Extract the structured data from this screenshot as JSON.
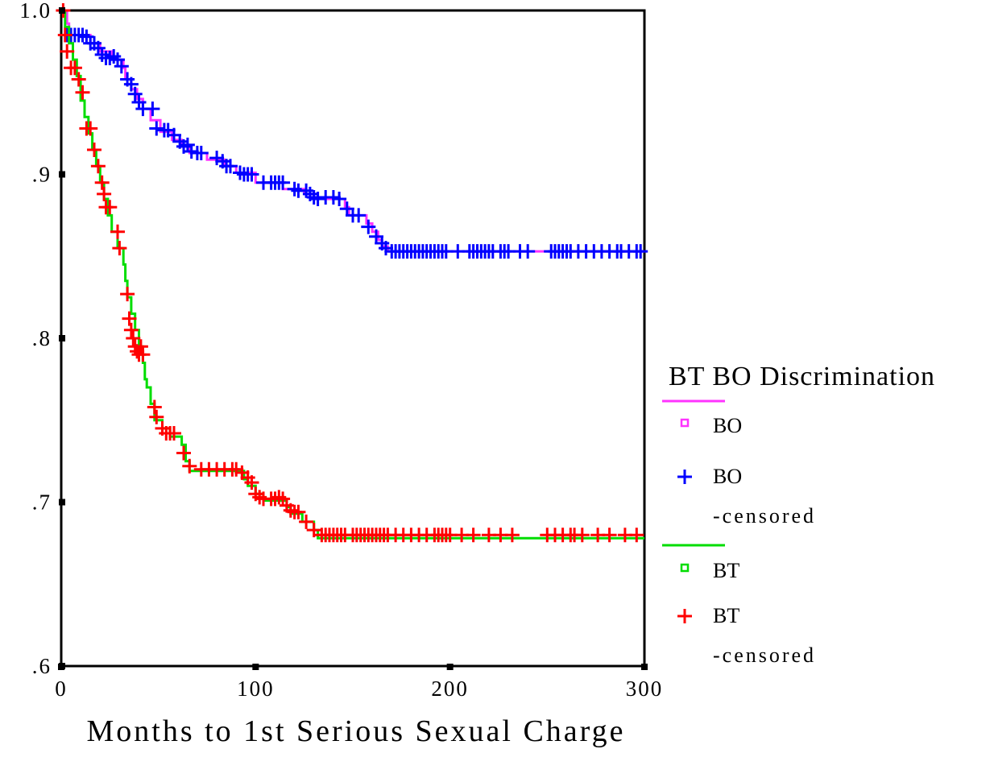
{
  "chart_data": {
    "type": "line",
    "subtype": "kaplan-meier-survival",
    "title": "",
    "xlabel": "Months to 1st Serious Sexual Charge",
    "ylabel": "",
    "xlim": [
      0,
      300
    ],
    "ylim": [
      0.6,
      1.0
    ],
    "x_ticks": [
      0,
      100,
      200,
      300
    ],
    "x_tick_labels": [
      "0",
      "100",
      "200",
      "300"
    ],
    "y_ticks": [
      1.0,
      0.9,
      0.8,
      0.7,
      0.6
    ],
    "y_tick_labels": [
      "1.0",
      ".9",
      ".8",
      ".7",
      ".6"
    ],
    "grid": false,
    "legend": {
      "title": "BT BO Discrimination",
      "position": "right",
      "entries": [
        {
          "kind": "line",
          "label": "",
          "color": "#ff33ff"
        },
        {
          "kind": "square",
          "label": "BO",
          "color": "#ff33ff"
        },
        {
          "kind": "plus",
          "label": "BO",
          "sublabel": "-censored",
          "color": "#0000ff"
        },
        {
          "kind": "line",
          "label": "",
          "color": "#00dd00"
        },
        {
          "kind": "square",
          "label": "BT",
          "color": "#00dd00"
        },
        {
          "kind": "plus",
          "label": "BT",
          "sublabel": "-censored",
          "color": "#ff0000"
        }
      ]
    },
    "series": [
      {
        "name": "BO",
        "line_color": "#ff33ff",
        "censor_color": "#0000ff",
        "steps": [
          [
            0,
            1.0
          ],
          [
            3,
            0.992
          ],
          [
            4,
            0.985
          ],
          [
            15,
            0.98
          ],
          [
            20,
            0.975
          ],
          [
            26,
            0.97
          ],
          [
            32,
            0.965
          ],
          [
            33,
            0.958
          ],
          [
            36,
            0.952
          ],
          [
            39,
            0.946
          ],
          [
            42,
            0.94
          ],
          [
            46,
            0.933
          ],
          [
            51,
            0.926
          ],
          [
            57,
            0.921
          ],
          [
            62,
            0.917
          ],
          [
            66,
            0.913
          ],
          [
            75,
            0.909
          ],
          [
            84,
            0.905
          ],
          [
            90,
            0.901
          ],
          [
            100,
            0.895
          ],
          [
            114,
            0.891
          ],
          [
            125,
            0.888
          ],
          [
            130,
            0.885
          ],
          [
            146,
            0.88
          ],
          [
            148,
            0.875
          ],
          [
            157,
            0.87
          ],
          [
            160,
            0.865
          ],
          [
            163,
            0.86
          ],
          [
            165,
            0.856
          ],
          [
            168,
            0.853
          ],
          [
            300,
            0.853
          ]
        ],
        "censored": [
          [
            3,
            0.985
          ],
          [
            5,
            0.985
          ],
          [
            7,
            0.985
          ],
          [
            9,
            0.985
          ],
          [
            11,
            0.985
          ],
          [
            13,
            0.984
          ],
          [
            15,
            0.98
          ],
          [
            17,
            0.98
          ],
          [
            19,
            0.977
          ],
          [
            21,
            0.973
          ],
          [
            23,
            0.971
          ],
          [
            25,
            0.971
          ],
          [
            27,
            0.972
          ],
          [
            29,
            0.97
          ],
          [
            31,
            0.966
          ],
          [
            34,
            0.958
          ],
          [
            36,
            0.955
          ],
          [
            38,
            0.949
          ],
          [
            40,
            0.944
          ],
          [
            42,
            0.94
          ],
          [
            47,
            0.94
          ],
          [
            49,
            0.928
          ],
          [
            53,
            0.927
          ],
          [
            55,
            0.927
          ],
          [
            58,
            0.924
          ],
          [
            61,
            0.92
          ],
          [
            63,
            0.917
          ],
          [
            65,
            0.918
          ],
          [
            67,
            0.914
          ],
          [
            70,
            0.913
          ],
          [
            72,
            0.913
          ],
          [
            80,
            0.91
          ],
          [
            83,
            0.908
          ],
          [
            85,
            0.905
          ],
          [
            87,
            0.905
          ],
          [
            92,
            0.901
          ],
          [
            94,
            0.9
          ],
          [
            96,
            0.9
          ],
          [
            98,
            0.9
          ],
          [
            104,
            0.895
          ],
          [
            108,
            0.895
          ],
          [
            110,
            0.895
          ],
          [
            112,
            0.895
          ],
          [
            114,
            0.895
          ],
          [
            120,
            0.891
          ],
          [
            122,
            0.89
          ],
          [
            126,
            0.89
          ],
          [
            128,
            0.888
          ],
          [
            130,
            0.886
          ],
          [
            132,
            0.885
          ],
          [
            136,
            0.886
          ],
          [
            140,
            0.886
          ],
          [
            143,
            0.885
          ],
          [
            147,
            0.879
          ],
          [
            150,
            0.875
          ],
          [
            153,
            0.875
          ],
          [
            158,
            0.868
          ],
          [
            162,
            0.862
          ],
          [
            165,
            0.858
          ],
          [
            167,
            0.855
          ],
          [
            170,
            0.853
          ],
          [
            172,
            0.853
          ],
          [
            174,
            0.853
          ],
          [
            176,
            0.853
          ],
          [
            178,
            0.853
          ],
          [
            180,
            0.853
          ],
          [
            182,
            0.853
          ],
          [
            184,
            0.853
          ],
          [
            186,
            0.853
          ],
          [
            188,
            0.853
          ],
          [
            190,
            0.853
          ],
          [
            192,
            0.853
          ],
          [
            194,
            0.853
          ],
          [
            196,
            0.853
          ],
          [
            198,
            0.853
          ],
          [
            204,
            0.853
          ],
          [
            210,
            0.853
          ],
          [
            212,
            0.853
          ],
          [
            214,
            0.853
          ],
          [
            216,
            0.853
          ],
          [
            218,
            0.853
          ],
          [
            220,
            0.853
          ],
          [
            222,
            0.853
          ],
          [
            226,
            0.853
          ],
          [
            228,
            0.853
          ],
          [
            230,
            0.853
          ],
          [
            236,
            0.853
          ],
          [
            240,
            0.853
          ],
          [
            252,
            0.853
          ],
          [
            254,
            0.853
          ],
          [
            256,
            0.853
          ],
          [
            258,
            0.853
          ],
          [
            260,
            0.853
          ],
          [
            262,
            0.853
          ],
          [
            266,
            0.853
          ],
          [
            270,
            0.853
          ],
          [
            274,
            0.853
          ],
          [
            278,
            0.853
          ],
          [
            282,
            0.853
          ],
          [
            286,
            0.853
          ],
          [
            288,
            0.853
          ],
          [
            292,
            0.853
          ],
          [
            296,
            0.853
          ],
          [
            298,
            0.853
          ]
        ]
      },
      {
        "name": "BT",
        "line_color": "#00dd00",
        "censor_color": "#ff0000",
        "steps": [
          [
            0,
            1.0
          ],
          [
            2,
            0.99
          ],
          [
            4,
            0.98
          ],
          [
            6,
            0.97
          ],
          [
            8,
            0.96
          ],
          [
            10,
            0.945
          ],
          [
            12,
            0.935
          ],
          [
            14,
            0.925
          ],
          [
            16,
            0.915
          ],
          [
            18,
            0.905
          ],
          [
            20,
            0.895
          ],
          [
            22,
            0.885
          ],
          [
            24,
            0.875
          ],
          [
            26,
            0.865
          ],
          [
            29,
            0.855
          ],
          [
            32,
            0.845
          ],
          [
            33,
            0.835
          ],
          [
            34,
            0.825
          ],
          [
            36,
            0.815
          ],
          [
            38,
            0.805
          ],
          [
            40,
            0.795
          ],
          [
            42,
            0.785
          ],
          [
            43,
            0.775
          ],
          [
            44,
            0.77
          ],
          [
            46,
            0.76
          ],
          [
            48,
            0.75
          ],
          [
            52,
            0.745
          ],
          [
            56,
            0.74
          ],
          [
            62,
            0.735
          ],
          [
            64,
            0.725
          ],
          [
            66,
            0.719
          ],
          [
            88,
            0.719
          ],
          [
            94,
            0.714
          ],
          [
            96,
            0.71
          ],
          [
            100,
            0.705
          ],
          [
            104,
            0.701
          ],
          [
            112,
            0.701
          ],
          [
            116,
            0.697
          ],
          [
            118,
            0.693
          ],
          [
            124,
            0.688
          ],
          [
            130,
            0.683
          ],
          [
            132,
            0.678
          ],
          [
            300,
            0.678
          ]
        ],
        "censored": [
          [
            1,
            1.0
          ],
          [
            2,
            0.985
          ],
          [
            3,
            0.975
          ],
          [
            5,
            0.965
          ],
          [
            7,
            0.965
          ],
          [
            9,
            0.958
          ],
          [
            11,
            0.95
          ],
          [
            13,
            0.928
          ],
          [
            15,
            0.928
          ],
          [
            17,
            0.915
          ],
          [
            19,
            0.905
          ],
          [
            21,
            0.895
          ],
          [
            22,
            0.888
          ],
          [
            23,
            0.88
          ],
          [
            25,
            0.88
          ],
          [
            29,
            0.865
          ],
          [
            30,
            0.855
          ],
          [
            34,
            0.827
          ],
          [
            35,
            0.812
          ],
          [
            36,
            0.805
          ],
          [
            37,
            0.8
          ],
          [
            38,
            0.795
          ],
          [
            39,
            0.792
          ],
          [
            40,
            0.79
          ],
          [
            41,
            0.795
          ],
          [
            42,
            0.79
          ],
          [
            48,
            0.758
          ],
          [
            49,
            0.752
          ],
          [
            52,
            0.745
          ],
          [
            54,
            0.742
          ],
          [
            56,
            0.742
          ],
          [
            58,
            0.742
          ],
          [
            63,
            0.73
          ],
          [
            66,
            0.722
          ],
          [
            72,
            0.72
          ],
          [
            76,
            0.72
          ],
          [
            80,
            0.72
          ],
          [
            84,
            0.72
          ],
          [
            88,
            0.72
          ],
          [
            90,
            0.72
          ],
          [
            93,
            0.718
          ],
          [
            96,
            0.715
          ],
          [
            98,
            0.712
          ],
          [
            100,
            0.705
          ],
          [
            102,
            0.703
          ],
          [
            104,
            0.702
          ],
          [
            108,
            0.702
          ],
          [
            110,
            0.702
          ],
          [
            112,
            0.703
          ],
          [
            114,
            0.702
          ],
          [
            116,
            0.698
          ],
          [
            118,
            0.695
          ],
          [
            120,
            0.694
          ],
          [
            122,
            0.694
          ],
          [
            126,
            0.688
          ],
          [
            130,
            0.683
          ],
          [
            134,
            0.68
          ],
          [
            136,
            0.68
          ],
          [
            138,
            0.68
          ],
          [
            140,
            0.68
          ],
          [
            142,
            0.68
          ],
          [
            144,
            0.68
          ],
          [
            146,
            0.68
          ],
          [
            150,
            0.68
          ],
          [
            152,
            0.68
          ],
          [
            154,
            0.68
          ],
          [
            156,
            0.68
          ],
          [
            158,
            0.68
          ],
          [
            160,
            0.68
          ],
          [
            162,
            0.68
          ],
          [
            164,
            0.68
          ],
          [
            166,
            0.68
          ],
          [
            168,
            0.68
          ],
          [
            172,
            0.68
          ],
          [
            176,
            0.68
          ],
          [
            180,
            0.68
          ],
          [
            184,
            0.68
          ],
          [
            188,
            0.68
          ],
          [
            192,
            0.68
          ],
          [
            194,
            0.68
          ],
          [
            196,
            0.68
          ],
          [
            198,
            0.68
          ],
          [
            200,
            0.68
          ],
          [
            206,
            0.68
          ],
          [
            212,
            0.68
          ],
          [
            220,
            0.68
          ],
          [
            226,
            0.68
          ],
          [
            232,
            0.68
          ],
          [
            250,
            0.68
          ],
          [
            254,
            0.68
          ],
          [
            258,
            0.68
          ],
          [
            262,
            0.68
          ],
          [
            264,
            0.68
          ],
          [
            268,
            0.68
          ],
          [
            276,
            0.68
          ],
          [
            282,
            0.68
          ],
          [
            290,
            0.68
          ],
          [
            296,
            0.68
          ]
        ]
      }
    ]
  }
}
